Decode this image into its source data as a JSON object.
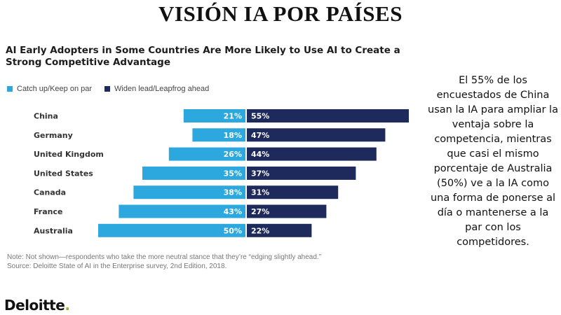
{
  "slide_title": "VISIÓN IA POR PAÍSES",
  "colors": {
    "catch_up": "#2ca8de",
    "widen_lead": "#1f2a5c",
    "note_text": "#777777",
    "logo_dot": "#86bc25"
  },
  "note_line1": "Note: Not shown—respondents who take the more neutral stance that they’re “edging slightly ahead.”",
  "note_line2": "Source: Deloitte State of AI in the Enterprise survey, 2nd Edition, 2018.",
  "side_text": "El 55% de los encuestados de China usan la IA para ampliar la ventaja sobre la competencia, mientras que casi el mismo porcentaje de Australia (50%) ve a la IA como una forma de ponerse al día o mantenerse a la par con los competidores.",
  "logo": {
    "name": "Deloitte",
    "dot": "."
  },
  "chart_data": {
    "type": "bar",
    "orientation": "horizontal-diverging",
    "title_line1": "AI Early Adopters in Some Countries Are More Likely to Use AI to Create a",
    "title_line2": "Strong Competitive Advantage",
    "categories": [
      "China",
      "Germany",
      "United Kingdom",
      "United States",
      "Canada",
      "France",
      "Australia"
    ],
    "series": [
      {
        "name": "Catch up/Keep on par",
        "values": [
          21,
          18,
          26,
          35,
          38,
          43,
          50
        ],
        "color": "#2ca8de",
        "direction": "left"
      },
      {
        "name": "Widen lead/Leapfrog ahead",
        "values": [
          55,
          47,
          44,
          37,
          31,
          27,
          22
        ],
        "color": "#1f2a5c",
        "direction": "right"
      }
    ],
    "value_suffix": "%",
    "legend_position": "top-left",
    "grid": false
  }
}
